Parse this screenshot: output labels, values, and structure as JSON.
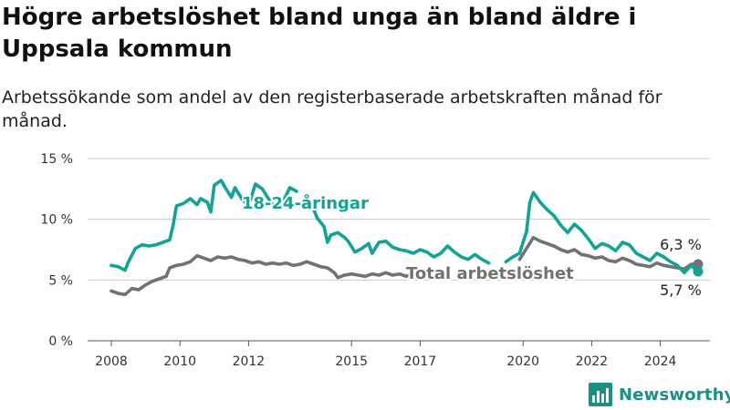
{
  "title": "Högre arbetslöshet bland unga än bland äldre i Uppsala kommun",
  "subtitle": "Arbetssökande som andel av den registerbaserade arbetskraften månad för månad.",
  "brand": {
    "name": "Newsworthy",
    "icon": "bar-chart-logo-icon"
  },
  "colors": {
    "youth": "#13a396",
    "total": "#727272",
    "grid": "#cccccc",
    "text": "#333333"
  },
  "chart_data": {
    "type": "line",
    "y_ticks": [
      "0 %",
      "5 %",
      "10 %",
      "15 %"
    ],
    "y_tick_values": [
      0,
      5,
      10,
      15
    ],
    "ylim": [
      0,
      15
    ],
    "x_ticks": [
      "2008",
      "2010",
      "2012",
      "2015",
      "2017",
      "2020",
      "2022",
      "2024"
    ],
    "x_tick_values": [
      2008.0,
      2010.0,
      2012.0,
      2015.0,
      2017.0,
      2020.0,
      2022.0,
      2024.0
    ],
    "xlim": [
      2007.9,
      2025.1
    ],
    "grid": true,
    "series": [
      {
        "name": "18-24-åringar",
        "color": "#13a396",
        "end_label": "5,7 %",
        "segments": [
          [
            [
              2008.0,
              6.2
            ],
            [
              2008.2,
              6.1
            ],
            [
              2008.4,
              5.8
            ],
            [
              2008.5,
              6.5
            ],
            [
              2008.7,
              7.6
            ],
            [
              2008.9,
              7.9
            ],
            [
              2009.1,
              7.8
            ],
            [
              2009.3,
              7.9
            ],
            [
              2009.5,
              8.1
            ],
            [
              2009.7,
              8.3
            ],
            [
              2009.8,
              9.5
            ],
            [
              2009.9,
              11.1
            ],
            [
              2010.1,
              11.3
            ],
            [
              2010.3,
              11.7
            ],
            [
              2010.5,
              11.2
            ],
            [
              2010.6,
              11.7
            ],
            [
              2010.8,
              11.4
            ],
            [
              2010.9,
              10.6
            ],
            [
              2011.0,
              12.8
            ],
            [
              2011.2,
              13.2
            ],
            [
              2011.3,
              12.7
            ],
            [
              2011.5,
              11.8
            ],
            [
              2011.6,
              12.6
            ],
            [
              2011.8,
              11.7
            ],
            [
              2012.0,
              11.1
            ],
            [
              2012.2,
              12.9
            ],
            [
              2012.4,
              12.5
            ],
            [
              2012.6,
              11.6
            ],
            [
              2012.8,
              10.9
            ],
            [
              2013.0,
              11.4
            ],
            [
              2013.2,
              12.6
            ],
            [
              2013.4,
              12.3
            ]
          ],
          [
            [
              2013.9,
              10.8
            ],
            [
              2014.0,
              10.1
            ],
            [
              2014.2,
              9.4
            ],
            [
              2014.3,
              8.1
            ],
            [
              2014.4,
              8.7
            ],
            [
              2014.6,
              8.9
            ],
            [
              2014.8,
              8.5
            ],
            [
              2014.9,
              8.2
            ],
            [
              2015.1,
              7.3
            ],
            [
              2015.3,
              7.6
            ],
            [
              2015.5,
              8.0
            ],
            [
              2015.6,
              7.2
            ],
            [
              2015.8,
              8.1
            ],
            [
              2016.0,
              8.2
            ],
            [
              2016.2,
              7.7
            ],
            [
              2016.4,
              7.5
            ],
            [
              2016.6,
              7.4
            ],
            [
              2016.8,
              7.2
            ],
            [
              2017.0,
              7.5
            ],
            [
              2017.2,
              7.3
            ],
            [
              2017.4,
              6.9
            ],
            [
              2017.6,
              7.2
            ],
            [
              2017.8,
              7.8
            ],
            [
              2018.0,
              7.3
            ],
            [
              2018.2,
              6.9
            ],
            [
              2018.4,
              6.7
            ],
            [
              2018.6,
              7.1
            ],
            [
              2018.8,
              6.7
            ],
            [
              2019.0,
              6.4
            ]
          ],
          [
            [
              2019.5,
              6.5
            ],
            [
              2019.7,
              6.9
            ],
            [
              2019.9,
              7.2
            ],
            [
              2020.1,
              9.0
            ],
            [
              2020.2,
              11.4
            ],
            [
              2020.3,
              12.2
            ],
            [
              2020.5,
              11.4
            ],
            [
              2020.7,
              10.8
            ],
            [
              2020.9,
              10.3
            ],
            [
              2021.1,
              9.5
            ],
            [
              2021.3,
              8.9
            ],
            [
              2021.5,
              9.6
            ],
            [
              2021.7,
              9.1
            ],
            [
              2021.9,
              8.4
            ],
            [
              2022.1,
              7.6
            ],
            [
              2022.3,
              8.0
            ],
            [
              2022.5,
              7.8
            ],
            [
              2022.7,
              7.4
            ],
            [
              2022.9,
              8.1
            ],
            [
              2023.1,
              7.9
            ],
            [
              2023.3,
              7.2
            ],
            [
              2023.5,
              6.9
            ],
            [
              2023.7,
              6.6
            ],
            [
              2023.9,
              7.2
            ],
            [
              2024.1,
              6.9
            ],
            [
              2024.3,
              6.5
            ],
            [
              2024.5,
              6.2
            ],
            [
              2024.7,
              5.6
            ],
            [
              2024.9,
              6.2
            ],
            [
              2025.1,
              5.7
            ]
          ]
        ]
      },
      {
        "name": "Total arbetslöshet",
        "color": "#727272",
        "end_label": "6,3 %",
        "segments": [
          [
            [
              2008.0,
              4.1
            ],
            [
              2008.2,
              3.9
            ],
            [
              2008.4,
              3.8
            ],
            [
              2008.6,
              4.3
            ],
            [
              2008.8,
              4.2
            ],
            [
              2009.0,
              4.6
            ],
            [
              2009.2,
              4.9
            ],
            [
              2009.4,
              5.1
            ],
            [
              2009.6,
              5.3
            ],
            [
              2009.7,
              6.0
            ],
            [
              2009.9,
              6.2
            ],
            [
              2010.1,
              6.3
            ],
            [
              2010.3,
              6.5
            ],
            [
              2010.5,
              7.0
            ],
            [
              2010.7,
              6.8
            ],
            [
              2010.9,
              6.6
            ],
            [
              2011.1,
              6.9
            ],
            [
              2011.3,
              6.8
            ],
            [
              2011.5,
              6.9
            ],
            [
              2011.7,
              6.7
            ],
            [
              2011.9,
              6.6
            ],
            [
              2012.1,
              6.4
            ],
            [
              2012.3,
              6.5
            ],
            [
              2012.5,
              6.3
            ],
            [
              2012.7,
              6.4
            ],
            [
              2012.9,
              6.3
            ],
            [
              2013.1,
              6.4
            ],
            [
              2013.3,
              6.2
            ],
            [
              2013.5,
              6.3
            ],
            [
              2013.7,
              6.5
            ],
            [
              2013.9,
              6.3
            ],
            [
              2014.1,
              6.1
            ],
            [
              2014.3,
              6.0
            ],
            [
              2014.5,
              5.6
            ],
            [
              2014.6,
              5.2
            ],
            [
              2014.8,
              5.4
            ],
            [
              2015.0,
              5.5
            ],
            [
              2015.2,
              5.4
            ],
            [
              2015.4,
              5.3
            ],
            [
              2015.6,
              5.5
            ],
            [
              2015.8,
              5.4
            ],
            [
              2016.0,
              5.6
            ],
            [
              2016.2,
              5.4
            ],
            [
              2016.4,
              5.5
            ],
            [
              2016.6,
              5.3
            ],
            [
              2016.8,
              5.6
            ],
            [
              2017.0,
              5.8
            ]
          ],
          [
            [
              2019.9,
              6.7
            ],
            [
              2020.1,
              7.6
            ],
            [
              2020.3,
              8.5
            ],
            [
              2020.5,
              8.2
            ],
            [
              2020.7,
              8.0
            ],
            [
              2020.9,
              7.8
            ],
            [
              2021.1,
              7.5
            ],
            [
              2021.3,
              7.3
            ],
            [
              2021.5,
              7.5
            ],
            [
              2021.7,
              7.1
            ],
            [
              2021.9,
              7.0
            ],
            [
              2022.1,
              6.8
            ],
            [
              2022.3,
              6.9
            ],
            [
              2022.5,
              6.6
            ],
            [
              2022.7,
              6.5
            ],
            [
              2022.9,
              6.8
            ],
            [
              2023.1,
              6.6
            ],
            [
              2023.3,
              6.3
            ],
            [
              2023.5,
              6.2
            ],
            [
              2023.7,
              6.1
            ],
            [
              2023.9,
              6.4
            ],
            [
              2024.1,
              6.2
            ],
            [
              2024.3,
              6.1
            ],
            [
              2024.5,
              6.0
            ],
            [
              2024.7,
              5.9
            ],
            [
              2024.9,
              6.3
            ],
            [
              2025.1,
              6.3
            ]
          ]
        ]
      }
    ]
  }
}
